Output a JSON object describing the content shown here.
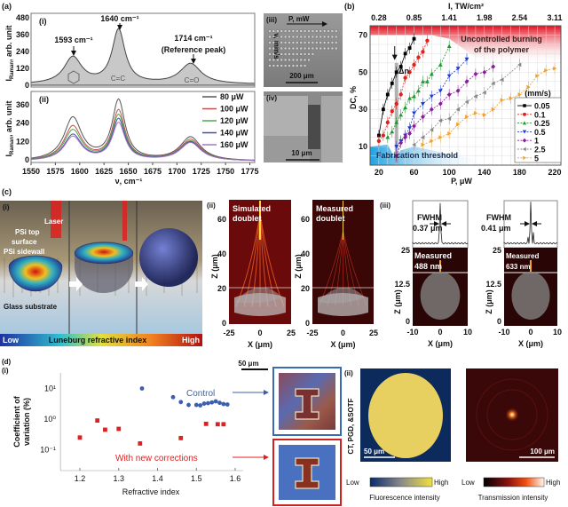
{
  "panel_a": {
    "label": "(a)",
    "i_label": "(i)",
    "ii_label": "(ii)",
    "iii_label": "(iii)",
    "iv_label": "(iv)",
    "ylabel_main": "I",
    "ylabel_sub": "Raman",
    "ylabel_rest": ", arb. unit",
    "xlabel": "ν, cm⁻¹",
    "peak1": "1593 cm⁻¹",
    "peak2": "1640 cm⁻¹",
    "peak3": "1714 cm⁻¹",
    "peak3_note": "(Reference peak)",
    "bond_cc": "C=C",
    "bond_co": "C=O",
    "sem_iii": {
      "arrow_label": "P, mW",
      "side_label": "v, mm/s",
      "scale": "200 μm"
    },
    "sem_iv": {
      "scale": "10 μm"
    }
  },
  "panel_b": {
    "label": "(b)",
    "top_label": "I, TW/cm²",
    "xlabel": "P, μW",
    "ylabel": "DC, %",
    "region_top_1": "Uncontrolled burning",
    "region_top_2": "of the polymer",
    "region_bottom": "Fabrication threshold",
    "delta": "Δn",
    "legend_title": "(mm/s)"
  },
  "panel_c": {
    "label": "(c)",
    "i_label": "(i)",
    "ii_label": "(ii)",
    "iii_label": "(iii)",
    "laser": "Laser",
    "top_surface_1": "PSi top",
    "top_surface_2": "surface",
    "sidewall": "PSi sidewall",
    "substrate": "Glass substrate",
    "colorbar": {
      "low": "Low",
      "title": "Luneburg refractive index",
      "high": "High"
    },
    "ii": {
      "sim_1": "Simulated",
      "sim_2": "doublet",
      "meas_1": "Measured",
      "meas_2": "doublet",
      "zlabel": "Z (μm)",
      "xlabel": "X (μm)",
      "zticks": [
        "0",
        "20",
        "40",
        "60"
      ],
      "xticks": [
        "-25",
        "0",
        "25"
      ]
    },
    "iii": {
      "fwhm": "FWHM",
      "fwhm1": "0.37 μm",
      "fwhm2": "0.41 μm",
      "m1_1": "Measured",
      "m1_2": "488 nm",
      "m2_1": "Measured",
      "m2_2": "633 nm",
      "zlabel": "Z (μm)",
      "xlabel": "X (μm)",
      "zticks": [
        "0",
        "12.5",
        "25"
      ],
      "xticks": [
        "-10",
        "0",
        "10"
      ]
    }
  },
  "panel_d": {
    "label": "(d)",
    "i_label": "(i)",
    "ii_label": "(ii)",
    "ylabel_1": "Coefficient of",
    "ylabel_2": "variation (%)",
    "xlabel": "Refractive index",
    "control": "Control",
    "corrected": "With new corrections",
    "scale_top": "50 μm",
    "side_label": "CT, PGD, &SOTF",
    "scale_fluor": "50 μm",
    "scale_trans": "100 μm",
    "fluor_bar": {
      "low": "Low",
      "high": "High",
      "title": "Fluorescence intensity"
    },
    "trans_bar": {
      "low": "Low",
      "high": "High",
      "title": "Transmission intensity"
    }
  },
  "chart_data": [
    {
      "id": "a-i",
      "type": "line",
      "xlabel": "ν, cm⁻¹",
      "ylabel": "I_Raman, arb. unit",
      "xlim": [
        1550,
        1780
      ],
      "ylim": [
        0,
        480
      ],
      "xticks": [
        1550,
        1575,
        1600,
        1625,
        1650,
        1675,
        1700,
        1725,
        1750,
        1775
      ],
      "yticks": [
        0,
        120,
        240,
        360,
        480
      ],
      "peaks": [
        {
          "x": 1593,
          "y": 190
        },
        {
          "x": 1640,
          "y": 385
        },
        {
          "x": 1714,
          "y": 145
        }
      ],
      "fill": "#c8c8c8"
    },
    {
      "id": "a-ii",
      "type": "line",
      "xlim": [
        1550,
        1780
      ],
      "ylim": [
        0,
        400
      ],
      "yticks": [
        0,
        120,
        240,
        360
      ],
      "series": [
        {
          "name": "80 μW",
          "color": "#555555",
          "peaks": [
            280,
            390,
            155
          ]
        },
        {
          "name": "100 μW",
          "color": "#c0504d",
          "peaks": [
            225,
            325,
            140
          ]
        },
        {
          "name": "120 μW",
          "color": "#4ea64e",
          "peaks": [
            200,
            295,
            130
          ]
        },
        {
          "name": "140 μW",
          "color": "#4050a8",
          "peaks": [
            170,
            270,
            125
          ]
        },
        {
          "name": "160 μW",
          "color": "#a478c0",
          "peaks": [
            158,
            245,
            120
          ]
        }
      ],
      "peak_positions": [
        1593,
        1640,
        1714
      ]
    },
    {
      "id": "b",
      "type": "scatter",
      "xlabel": "P, μW",
      "ylabel": "DC, %",
      "x2label": "I, TW/cm²",
      "xlim": [
        10,
        227
      ],
      "ylim": [
        0,
        75
      ],
      "xticks": [
        20,
        60,
        100,
        140,
        180,
        220
      ],
      "yticks": [
        10,
        30,
        50,
        70
      ],
      "x2ticks": [
        "0.28",
        "0.85",
        "1.41",
        "1.98",
        "2.54",
        "3.11"
      ],
      "grid": true,
      "legend": "bottom-right",
      "legend_title": "(mm/s)",
      "series": [
        {
          "name": "0.05",
          "color": "#000000",
          "marker": "square",
          "x": [
            20,
            25,
            30,
            35,
            40,
            45,
            50,
            55,
            60
          ],
          "y": [
            16,
            30,
            38,
            44,
            50,
            53,
            60,
            63,
            68
          ]
        },
        {
          "name": "0.1",
          "color": "#e0201b",
          "marker": "circle",
          "x": [
            20,
            25,
            30,
            35,
            40,
            45,
            50,
            55,
            60,
            65,
            70,
            75
          ],
          "y": [
            13,
            16,
            23,
            29,
            33,
            38,
            47,
            50,
            54,
            58,
            61,
            67
          ]
        },
        {
          "name": "0.25",
          "color": "#1a9a2a",
          "marker": "triangle-up",
          "x": [
            30,
            35,
            40,
            45,
            50,
            55,
            60,
            65,
            70,
            75,
            80,
            90,
            100
          ],
          "y": [
            15,
            18,
            23,
            27,
            31,
            36,
            37,
            40,
            45,
            45,
            49,
            54,
            64
          ]
        },
        {
          "name": "0.5",
          "color": "#1a3ad0",
          "marker": "triangle-down",
          "x": [
            40,
            45,
            50,
            55,
            60,
            70,
            80,
            90,
            100,
            110,
            120
          ],
          "y": [
            10,
            13,
            16,
            20,
            28,
            33,
            37,
            40,
            48,
            52,
            57
          ]
        },
        {
          "name": "1",
          "color": "#8a1a9a",
          "marker": "diamond",
          "x": [
            40,
            45,
            50,
            55,
            60,
            70,
            80,
            90,
            100,
            110,
            120,
            130,
            140,
            150
          ],
          "y": [
            5,
            12,
            15,
            17,
            21,
            26,
            30,
            33,
            38,
            40,
            45,
            49,
            50,
            53
          ]
        },
        {
          "name": "2.5",
          "color": "#888888",
          "marker": "triangle-left",
          "x": [
            60,
            70,
            80,
            90,
            100,
            110,
            120,
            130,
            140,
            150,
            160,
            180
          ],
          "y": [
            11,
            15,
            19,
            24,
            25,
            30,
            34,
            37,
            39,
            44,
            46,
            54
          ]
        },
        {
          "name": "5",
          "color": "#f0a030",
          "marker": "triangle-right",
          "x": [
            70,
            80,
            90,
            100,
            110,
            120,
            130,
            140,
            150,
            160,
            170,
            180,
            190,
            200,
            210,
            220
          ],
          "y": [
            11,
            13,
            15,
            17,
            22,
            26,
            28,
            27,
            30,
            35,
            36,
            38,
            42,
            48,
            51,
            52
          ]
        }
      ]
    },
    {
      "id": "d-i",
      "type": "scatter",
      "xlabel": "Refractive index",
      "ylabel": "Coefficient of variation (%)",
      "yscale": "log",
      "xlim": [
        1.15,
        1.62
      ],
      "ylim": [
        0.02,
        30
      ],
      "xticks": [
        1.2,
        1.3,
        1.4,
        1.5,
        1.6
      ],
      "yticks": [
        "10⁻¹",
        "10⁰",
        "10¹"
      ],
      "series": [
        {
          "name": "Control",
          "color": "#3a5fb0",
          "marker": "circle",
          "x": [
            1.36,
            1.44,
            1.46,
            1.48,
            1.5,
            1.51,
            1.52,
            1.53,
            1.54,
            1.55,
            1.56,
            1.57,
            1.58
          ],
          "y": [
            10,
            5.2,
            3.6,
            2.9,
            2.9,
            2.8,
            3.2,
            3.3,
            3.5,
            3.8,
            3.4,
            3.1,
            3.0
          ]
        },
        {
          "name": "With new corrections",
          "color": "#e02020",
          "marker": "square",
          "x": [
            1.2,
            1.245,
            1.265,
            1.3,
            1.355,
            1.46,
            1.525,
            1.555,
            1.57
          ],
          "y": [
            0.25,
            0.9,
            0.45,
            0.48,
            0.16,
            0.24,
            0.7,
            0.68,
            0.68
          ]
        }
      ]
    }
  ]
}
